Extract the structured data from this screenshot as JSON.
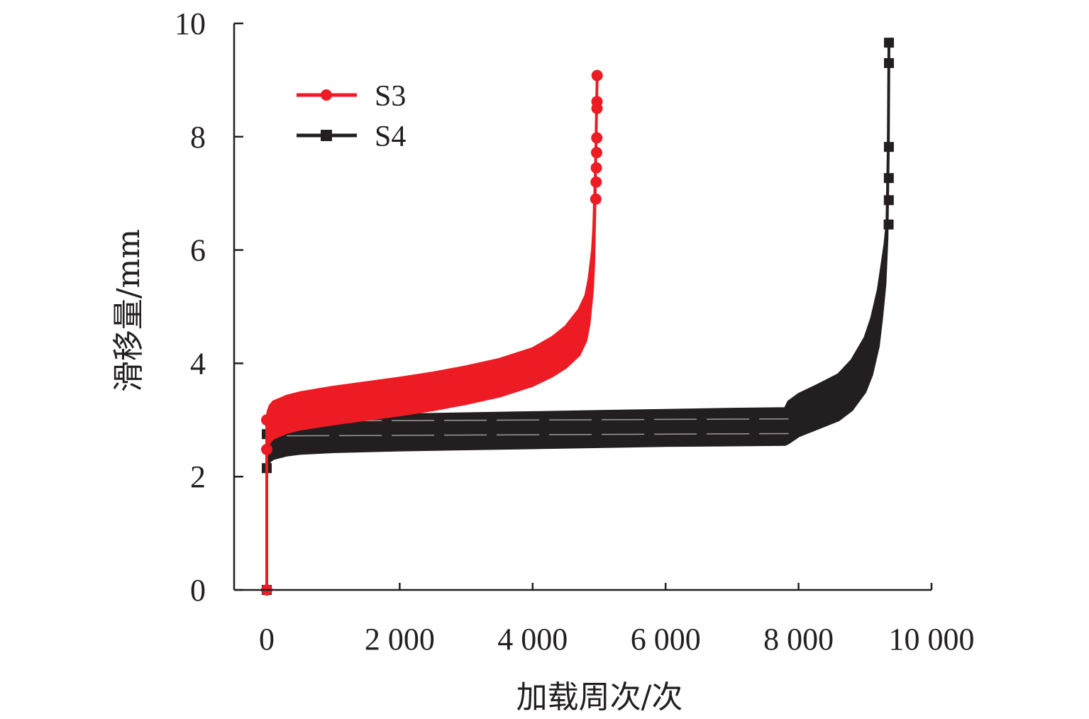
{
  "chart_data": {
    "type": "line",
    "title": "",
    "xlabel": "加载周次/次",
    "ylabel": "滑移量/mm",
    "xlim": [
      -500,
      10000
    ],
    "ylim": [
      0,
      10
    ],
    "x_ticks": [
      0,
      2000,
      4000,
      6000,
      8000,
      10000
    ],
    "x_tick_labels": [
      "0",
      "2 000",
      "4 000",
      "6 000",
      "8 000",
      "10 000"
    ],
    "y_ticks": [
      0,
      2,
      4,
      6,
      8,
      10
    ],
    "y_tick_labels": [
      "0",
      "2",
      "4",
      "6",
      "8",
      "10"
    ],
    "grid": false,
    "legend_position": "top-left",
    "series": [
      {
        "name": "S3",
        "color": "#ed1c24",
        "marker": "circle",
        "x": [
          0,
          0,
          20,
          50,
          100,
          300,
          500,
          1000,
          1500,
          2000,
          2500,
          3000,
          3500,
          4000,
          4300,
          4500,
          4700,
          4800,
          4850,
          4900,
          4920,
          4930,
          4940,
          4950,
          4960,
          4970
        ],
        "y_upper": [
          0,
          3.0,
          3.15,
          3.25,
          3.32,
          3.42,
          3.48,
          3.58,
          3.66,
          3.74,
          3.83,
          3.94,
          4.07,
          4.26,
          4.46,
          4.65,
          4.95,
          5.2,
          5.5,
          6.0,
          6.4,
          6.8,
          7.2,
          7.7,
          8.4,
          9.08
        ],
        "y_lower": [
          0,
          2.48,
          2.55,
          2.62,
          2.68,
          2.78,
          2.84,
          2.93,
          3.01,
          3.09,
          3.18,
          3.29,
          3.42,
          3.61,
          3.78,
          3.93,
          4.15,
          4.4,
          4.7,
          5.3,
          5.8,
          6.4,
          7.0,
          7.7,
          8.4,
          9.08
        ]
      },
      {
        "name": "S4",
        "color": "#231f20",
        "marker": "square",
        "x": [
          0,
          0,
          20,
          50,
          100,
          300,
          500,
          1000,
          2000,
          3000,
          4000,
          5000,
          6000,
          7000,
          7800,
          7850,
          8000,
          8300,
          8600,
          8800,
          9000,
          9100,
          9200,
          9250,
          9300,
          9330,
          9350,
          9360
        ],
        "y_upper": [
          0,
          2.75,
          2.84,
          2.89,
          2.93,
          2.98,
          3.01,
          3.05,
          3.09,
          3.11,
          3.13,
          3.15,
          3.17,
          3.19,
          3.2,
          3.32,
          3.45,
          3.62,
          3.8,
          4.05,
          4.45,
          4.8,
          5.3,
          5.7,
          6.1,
          6.45,
          7.8,
          9.66
        ],
        "y_lower": [
          0,
          2.15,
          2.22,
          2.28,
          2.32,
          2.38,
          2.41,
          2.44,
          2.47,
          2.49,
          2.51,
          2.53,
          2.55,
          2.56,
          2.57,
          2.6,
          2.72,
          2.86,
          3.0,
          3.18,
          3.5,
          3.8,
          4.3,
          4.8,
          5.4,
          6.2,
          7.8,
          9.66
        ]
      }
    ]
  }
}
